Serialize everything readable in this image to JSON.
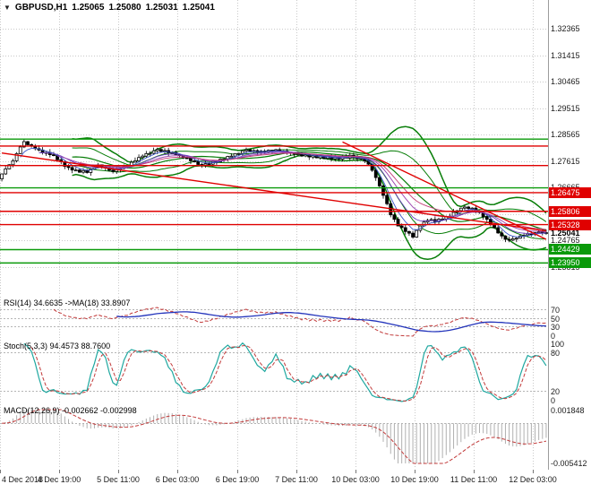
{
  "window": {
    "bg": "#ffffff",
    "grid_color": "#c9c9c9",
    "border_color": "#9c9c9c"
  },
  "header": {
    "icon": "▼",
    "symbol": "GBPUSD,H1",
    "ohlc": [
      "1.25065",
      "1.25080",
      "1.25031",
      "1.25041"
    ]
  },
  "price_axis": {
    "labels": [
      "1.32365",
      "1.31415",
      "1.30465",
      "1.29515",
      "1.28565",
      "1.27615",
      "1.26665",
      "1.25715",
      "1.24765",
      "1.23815"
    ],
    "current": "1.25041"
  },
  "time_axis": {
    "labels": [
      "4 Dec 2018",
      "4 Dec 19:00",
      "5 Dec 11:00",
      "6 Dec 03:00",
      "6 Dec 19:00",
      "7 Dec 11:00",
      "10 Dec 03:00",
      "10 Dec 19:00",
      "11 Dec 11:00",
      "12 Dec 03:00"
    ],
    "bars": [
      0,
      16,
      32,
      48,
      64,
      80,
      96,
      112,
      128,
      144
    ]
  },
  "chart_data": {
    "type": "candlestick",
    "symbol": "GBPUSD",
    "timeframe": "H1",
    "current_bar": {
      "open": 1.25065,
      "high": 1.2508,
      "low": 1.25031,
      "close": 1.25041
    },
    "price_range": [
      1.2277,
      1.334
    ],
    "closes": [
      1.2715,
      1.2733,
      1.2748,
      1.2762,
      1.2788,
      1.2812,
      1.2831,
      1.282,
      1.2815,
      1.2806,
      1.2801,
      1.2791,
      1.2792,
      1.2784,
      1.2781,
      1.2766,
      1.2759,
      1.2742,
      1.2738,
      1.2729,
      1.2729,
      1.2721,
      1.2727,
      1.272,
      1.2733,
      1.2738,
      1.2748,
      1.274,
      1.2737,
      1.2728,
      1.2724,
      1.2732,
      1.2735,
      1.2743,
      1.2744,
      1.2757,
      1.2762,
      1.2774,
      1.2779,
      1.2788,
      1.2789,
      1.2798,
      1.2803,
      1.2796,
      1.2799,
      1.2791,
      1.2792,
      1.2784,
      1.2782,
      1.2773,
      1.2772,
      1.2762,
      1.276,
      1.2749,
      1.2747,
      1.2752,
      1.275,
      1.2759,
      1.2758,
      1.2768,
      1.2769,
      1.2778,
      1.2779,
      1.2788,
      1.2789,
      1.2798,
      1.2802,
      1.2797,
      1.2799,
      1.2794,
      1.2797,
      1.2794,
      1.28,
      1.2797,
      1.2802,
      1.2796,
      1.2797,
      1.2791,
      1.2792,
      1.2786,
      1.2787,
      1.278,
      1.2784,
      1.2776,
      1.2781,
      1.2773,
      1.2779,
      1.2771,
      1.2776,
      1.2769,
      1.2774,
      1.2768,
      1.2777,
      1.2772,
      1.2782,
      1.2775,
      1.277,
      1.2772,
      1.2762,
      1.275,
      1.2728,
      1.2702,
      1.2672,
      1.2638,
      1.2608,
      1.2568,
      1.2552,
      1.2528,
      1.2522,
      1.2508,
      1.2502,
      1.2488,
      1.2512,
      1.2528,
      1.2542,
      1.2548,
      1.2551,
      1.2543,
      1.2552,
      1.2553,
      1.2561,
      1.2563,
      1.2577,
      1.2583,
      1.2592,
      1.2596,
      1.2591,
      1.2592,
      1.2581,
      1.2576,
      1.2561,
      1.2552,
      1.2533,
      1.2522,
      1.2503,
      1.2492,
      1.248,
      1.2477,
      1.2482,
      1.2484,
      1.2492,
      1.2494,
      1.2499,
      1.2498,
      1.2504,
      1.2506,
      1.2503,
      1.2504
    ],
    "candle_colors": {
      "up_fill": "#ffffff",
      "down_fill": "#000000",
      "outline": "#000000"
    },
    "bollinger": {
      "period": 20,
      "deviations": [
        2,
        1
      ],
      "color": "#077d07"
    },
    "ema_periods": [
      5,
      10,
      15,
      21
    ],
    "ema_colors": [
      "#3a56c8",
      "#6a42be",
      "#9a3fae",
      "#c23b76"
    ],
    "level_colors": {
      "red": "#e00000",
      "green": "#0a9a0a"
    },
    "levels": [
      {
        "price": 1.284,
        "color": "green",
        "badge": false
      },
      {
        "price": 1.2815,
        "color": "red",
        "badge": false
      },
      {
        "price": 1.2745,
        "color": "red",
        "badge": false
      },
      {
        "price": 1.2665,
        "color": "green",
        "badge": false
      },
      {
        "price": 1.26475,
        "color": "red",
        "badge": true,
        "label": "1.26475"
      },
      {
        "price": 1.25806,
        "color": "red",
        "badge": true,
        "label": "1.25806"
      },
      {
        "price": 1.25328,
        "color": "red",
        "badge": true,
        "label": "1.25328"
      },
      {
        "price": 1.24429,
        "color": "green",
        "badge": true,
        "label": "1.24429"
      },
      {
        "price": 1.2395,
        "color": "green",
        "badge": true,
        "label": "1.23950"
      }
    ],
    "trendlines": [
      {
        "b1": 0,
        "p1": 1.279,
        "b2": 147,
        "p2": 1.251
      },
      {
        "b1": 92,
        "p1": 1.283,
        "b2": 147,
        "p2": 1.248
      }
    ],
    "indicators": {
      "rsi": {
        "label": "RSI(14) 34.6635 ->MA(18) 33.8907",
        "period": 14,
        "ma_period": 18,
        "value": 34.6635,
        "ma_value": 33.8907,
        "levels": [
          70,
          50,
          30
        ],
        "axis_labels": [
          "70",
          "50",
          "30",
          "0"
        ],
        "colors": {
          "main": "#c23b3b",
          "ma": "#2233bb"
        }
      },
      "stoch": {
        "label": "Stoch(5,3,3) 94.4573 88.7600",
        "k_value": 94.4573,
        "d_value": 88.76,
        "levels": [
          80,
          20
        ],
        "axis_labels": [
          "100",
          "80",
          "20",
          "0"
        ],
        "colors": {
          "k": "#1fa8a0",
          "d": "#c23b3b"
        }
      },
      "macd": {
        "label": "MACD(12,26,9) -0.002662 -0.002998",
        "fast": 12,
        "slow": 26,
        "signal_period": 9,
        "macd_value": -0.002662,
        "signal_value": -0.002998,
        "scale_max": 0.001848,
        "scale_min": -0.005412,
        "axis_labels": [
          "0.001848",
          "-0.005412"
        ],
        "colors": {
          "hist": "#b0b0b0",
          "signal": "#c23b3b"
        }
      }
    }
  }
}
